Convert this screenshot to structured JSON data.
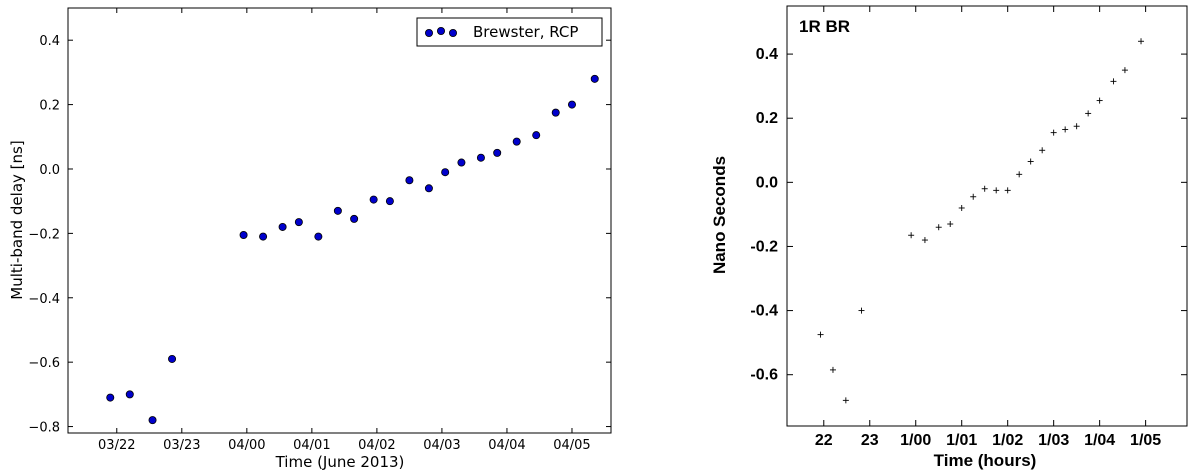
{
  "chart_data": [
    {
      "type": "scatter",
      "title": "",
      "xlabel": "Time (June 2013)",
      "ylabel": "Multi-band delay [ns]",
      "x_ticks": [
        {
          "label": "03/22",
          "hour": 22
        },
        {
          "label": "03/23",
          "hour": 23
        },
        {
          "label": "04/00",
          "hour": 24
        },
        {
          "label": "04/01",
          "hour": 25
        },
        {
          "label": "04/02",
          "hour": 26
        },
        {
          "label": "04/03",
          "hour": 27
        },
        {
          "label": "04/04",
          "hour": 28
        },
        {
          "label": "04/05",
          "hour": 29
        }
      ],
      "xlim": [
        21.25,
        29.6
      ],
      "ylim": [
        -0.82,
        0.5
      ],
      "y_ticks": [
        -0.8,
        -0.6,
        -0.4,
        -0.2,
        0.0,
        0.2,
        0.4
      ],
      "y_tick_labels": [
        "−0.8",
        "−0.6",
        "−0.4",
        "−0.2",
        "0.0",
        "0.2",
        "0.4"
      ],
      "legend": {
        "position": "top-right",
        "entries": [
          "Brewster, RCP"
        ]
      },
      "marker_color": "#0000cc",
      "series": [
        {
          "name": "Brewster, RCP",
          "points": [
            [
              21.9,
              -0.71
            ],
            [
              22.2,
              -0.7
            ],
            [
              22.55,
              -0.78
            ],
            [
              22.85,
              -0.59
            ],
            [
              23.95,
              -0.205
            ],
            [
              24.25,
              -0.21
            ],
            [
              24.55,
              -0.18
            ],
            [
              24.8,
              -0.165
            ],
            [
              25.1,
              -0.21
            ],
            [
              25.4,
              -0.13
            ],
            [
              25.65,
              -0.155
            ],
            [
              25.95,
              -0.095
            ],
            [
              26.2,
              -0.1
            ],
            [
              26.5,
              -0.035
            ],
            [
              26.8,
              -0.06
            ],
            [
              27.05,
              -0.01
            ],
            [
              27.3,
              0.02
            ],
            [
              27.6,
              0.035
            ],
            [
              27.85,
              0.05
            ],
            [
              28.15,
              0.085
            ],
            [
              28.45,
              0.105
            ],
            [
              28.75,
              0.175
            ],
            [
              29.0,
              0.2
            ],
            [
              29.35,
              0.28
            ]
          ]
        }
      ]
    },
    {
      "type": "scatter",
      "title": "1R BR",
      "xlabel": "Time (hours)",
      "ylabel": "Nano Seconds",
      "x_ticks": [
        {
          "label": "22",
          "hour": 22
        },
        {
          "label": "23",
          "hour": 23
        },
        {
          "label": "1/00",
          "hour": 24
        },
        {
          "label": "1/01",
          "hour": 25
        },
        {
          "label": "1/02",
          "hour": 26
        },
        {
          "label": "1/03",
          "hour": 27
        },
        {
          "label": "1/04",
          "hour": 28
        },
        {
          "label": "1/05",
          "hour": 29
        }
      ],
      "xlim": [
        21.2,
        29.9
      ],
      "ylim": [
        -0.76,
        0.55
      ],
      "y_ticks": [
        -0.6,
        -0.4,
        -0.2,
        0.0,
        0.2,
        0.4
      ],
      "y_tick_labels": [
        "-0.6",
        "-0.4",
        "-0.2",
        "0.0",
        "0.2",
        "0.4"
      ],
      "marker": "plus",
      "series": [
        {
          "points": [
            [
              21.93,
              -0.475
            ],
            [
              22.2,
              -0.585
            ],
            [
              22.48,
              -0.68
            ],
            [
              22.82,
              -0.4
            ],
            [
              23.9,
              -0.165
            ],
            [
              24.2,
              -0.18
            ],
            [
              24.5,
              -0.14
            ],
            [
              24.75,
              -0.13
            ],
            [
              25.0,
              -0.08
            ],
            [
              25.25,
              -0.045
            ],
            [
              25.5,
              -0.02
            ],
            [
              25.75,
              -0.025
            ],
            [
              26.0,
              -0.025
            ],
            [
              26.25,
              0.025
            ],
            [
              26.5,
              0.065
            ],
            [
              26.75,
              0.1
            ],
            [
              27.0,
              0.155
            ],
            [
              27.25,
              0.165
            ],
            [
              27.5,
              0.175
            ],
            [
              27.75,
              0.215
            ],
            [
              28.0,
              0.255
            ],
            [
              28.3,
              0.315
            ],
            [
              28.55,
              0.35
            ],
            [
              28.9,
              0.44
            ]
          ]
        }
      ]
    }
  ]
}
